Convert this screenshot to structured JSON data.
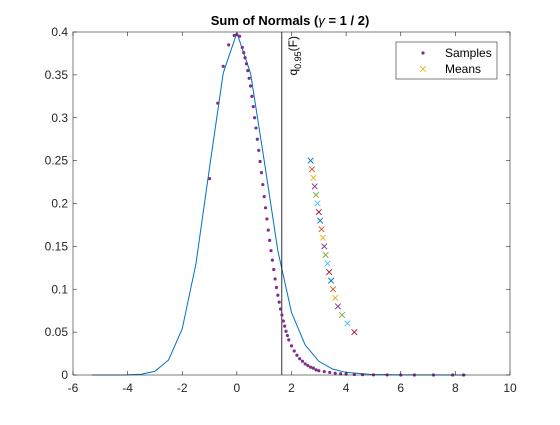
{
  "chart_data": {
    "type": "line",
    "title_prefix": "Sum of Normals (",
    "title_greek": "γ",
    "title_suffix": " = 1 / 2)",
    "xlabel": "",
    "ylabel": "",
    "xlim": [
      -6,
      10
    ],
    "ylim": [
      0,
      0.4
    ],
    "xticks": [
      -6,
      -4,
      -2,
      0,
      2,
      4,
      6,
      8,
      10
    ],
    "yticks": [
      0,
      0.05,
      0.1,
      0.15,
      0.2,
      0.25,
      0.3,
      0.35,
      0.4
    ],
    "legend_position": "top-right",
    "legend": [
      {
        "label": "Samples",
        "marker": "dot",
        "color": "#7e2f8e"
      },
      {
        "label": "Means",
        "marker": "x",
        "color": "#edb120"
      }
    ],
    "density_curve": {
      "color": "#0072bd",
      "x": [
        -5.3,
        -4.5,
        -4.0,
        -3.5,
        -3.0,
        -2.5,
        -2.0,
        -1.5,
        -1.0,
        -0.5,
        0.0,
        0.5,
        1.0,
        1.5,
        2.0,
        2.5,
        3.0,
        3.5,
        4.0,
        5.0,
        6.0,
        8.4
      ],
      "y": [
        0.0,
        0.0,
        0.0001,
        0.0009,
        0.0044,
        0.0175,
        0.054,
        0.1295,
        0.242,
        0.352,
        0.399,
        0.352,
        0.25,
        0.145,
        0.073,
        0.035,
        0.016,
        0.007,
        0.003,
        0.0005,
        0.0001,
        0.0
      ]
    },
    "quantile_line": {
      "x": 1.645,
      "label_base": "q",
      "label_sub": "0.95",
      "label_suffix": "(F)",
      "color": "#000000"
    },
    "samples": {
      "color": "#7e2f8e",
      "x": [
        -1.0,
        -0.7,
        -0.5,
        -0.3,
        -0.1,
        0.0,
        0.1,
        0.2,
        0.25,
        0.3,
        0.35,
        0.4,
        0.45,
        0.5,
        0.55,
        0.6,
        0.65,
        0.7,
        0.75,
        0.8,
        0.85,
        0.9,
        0.95,
        1.0,
        1.05,
        1.1,
        1.15,
        1.2,
        1.25,
        1.3,
        1.35,
        1.4,
        1.45,
        1.5,
        1.55,
        1.6,
        1.65,
        1.7,
        1.75,
        1.8,
        1.85,
        1.9,
        2.0,
        2.1,
        2.2,
        2.3,
        2.4,
        2.5,
        2.6,
        2.7,
        2.8,
        2.9,
        3.0,
        3.2,
        3.4,
        3.6,
        3.8,
        4.0,
        4.3,
        4.6,
        5.0,
        5.5,
        6.0,
        6.5,
        7.2,
        7.9,
        8.3
      ],
      "y": [
        0.229,
        0.317,
        0.36,
        0.385,
        0.396,
        0.397,
        0.395,
        0.382,
        0.376,
        0.37,
        0.363,
        0.355,
        0.346,
        0.337,
        0.325,
        0.313,
        0.3,
        0.288,
        0.275,
        0.262,
        0.249,
        0.236,
        0.222,
        0.208,
        0.195,
        0.182,
        0.169,
        0.157,
        0.145,
        0.134,
        0.123,
        0.112,
        0.102,
        0.093,
        0.085,
        0.077,
        0.07,
        0.063,
        0.057,
        0.051,
        0.046,
        0.041,
        0.034,
        0.028,
        0.023,
        0.019,
        0.016,
        0.013,
        0.011,
        0.009,
        0.008,
        0.006,
        0.005,
        0.004,
        0.003,
        0.002,
        0.0015,
        0.001,
        0.0006,
        0.0004,
        0.0002,
        0.0001,
        0.0,
        0.0,
        0.0,
        0.0,
        0.0
      ]
    },
    "means": {
      "colors": [
        "#0072bd",
        "#d95319",
        "#edb120",
        "#7e2f8e",
        "#77ac30",
        "#4dbeee",
        "#a2142f",
        "#0072bd",
        "#d95319",
        "#edb120",
        "#7e2f8e",
        "#77ac30",
        "#4dbeee",
        "#a2142f",
        "#0072bd",
        "#d95319",
        "#edb120",
        "#7e2f8e",
        "#77ac30",
        "#4dbeee",
        "#a2142f"
      ],
      "x": [
        2.7,
        2.75,
        2.8,
        2.85,
        2.9,
        2.95,
        3.0,
        3.05,
        3.1,
        3.15,
        3.2,
        3.25,
        3.32,
        3.38,
        3.45,
        3.52,
        3.6,
        3.7,
        3.85,
        4.05,
        4.3
      ],
      "y": [
        0.25,
        0.24,
        0.23,
        0.22,
        0.21,
        0.2,
        0.19,
        0.18,
        0.17,
        0.16,
        0.15,
        0.14,
        0.13,
        0.12,
        0.11,
        0.1,
        0.09,
        0.08,
        0.07,
        0.06,
        0.05
      ]
    }
  }
}
